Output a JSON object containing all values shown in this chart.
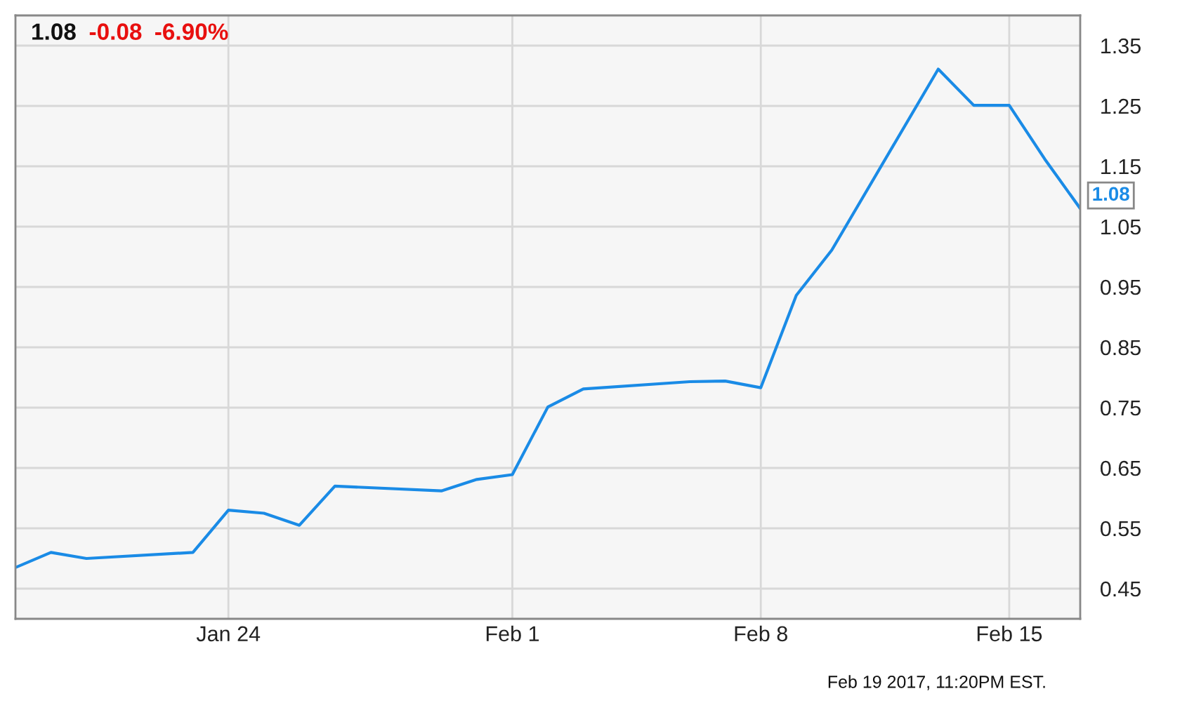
{
  "chart_data": {
    "type": "line",
    "x": [
      "2017-01-18",
      "2017-01-19",
      "2017-01-20",
      "2017-01-23",
      "2017-01-24",
      "2017-01-25",
      "2017-01-26",
      "2017-01-27",
      "2017-01-30",
      "2017-01-31",
      "2017-02-01",
      "2017-02-02",
      "2017-02-03",
      "2017-02-06",
      "2017-02-07",
      "2017-02-08",
      "2017-02-09",
      "2017-02-10",
      "2017-02-13",
      "2017-02-14",
      "2017-02-15",
      "2017-02-16",
      "2017-02-17"
    ],
    "series": [
      {
        "color": "#1a8be6",
        "values": [
          0.485,
          0.51,
          0.5,
          0.51,
          0.58,
          0.575,
          0.555,
          0.62,
          0.612,
          0.631,
          0.639,
          0.751,
          0.781,
          0.793,
          0.794,
          0.783,
          0.936,
          1.011,
          1.311,
          1.251,
          1.251,
          1.162,
          1.08
        ]
      }
    ],
    "xlim": [
      "2017-01-18",
      "2017-02-17"
    ],
    "xticks": [
      {
        "value": "2017-01-24",
        "label": "Jan 24"
      },
      {
        "value": "2017-02-01",
        "label": "Feb 1"
      },
      {
        "value": "2017-02-08",
        "label": "Feb 8"
      },
      {
        "value": "2017-02-15",
        "label": "Feb 15"
      }
    ],
    "ylim": [
      0.4,
      1.4
    ],
    "yticks": [
      0.45,
      0.55,
      0.65,
      0.75,
      0.85,
      0.95,
      1.05,
      1.15,
      1.25,
      1.35
    ],
    "grid": true,
    "marker": "none",
    "line_style": "solid",
    "annotations": [
      "1.08",
      "-0.08",
      "-6.90%",
      {
        "text": "1.08",
        "x": "2017-02-17",
        "y": 1.08
      },
      "Feb 19 2017, 11:20PM EST."
    ]
  }
}
